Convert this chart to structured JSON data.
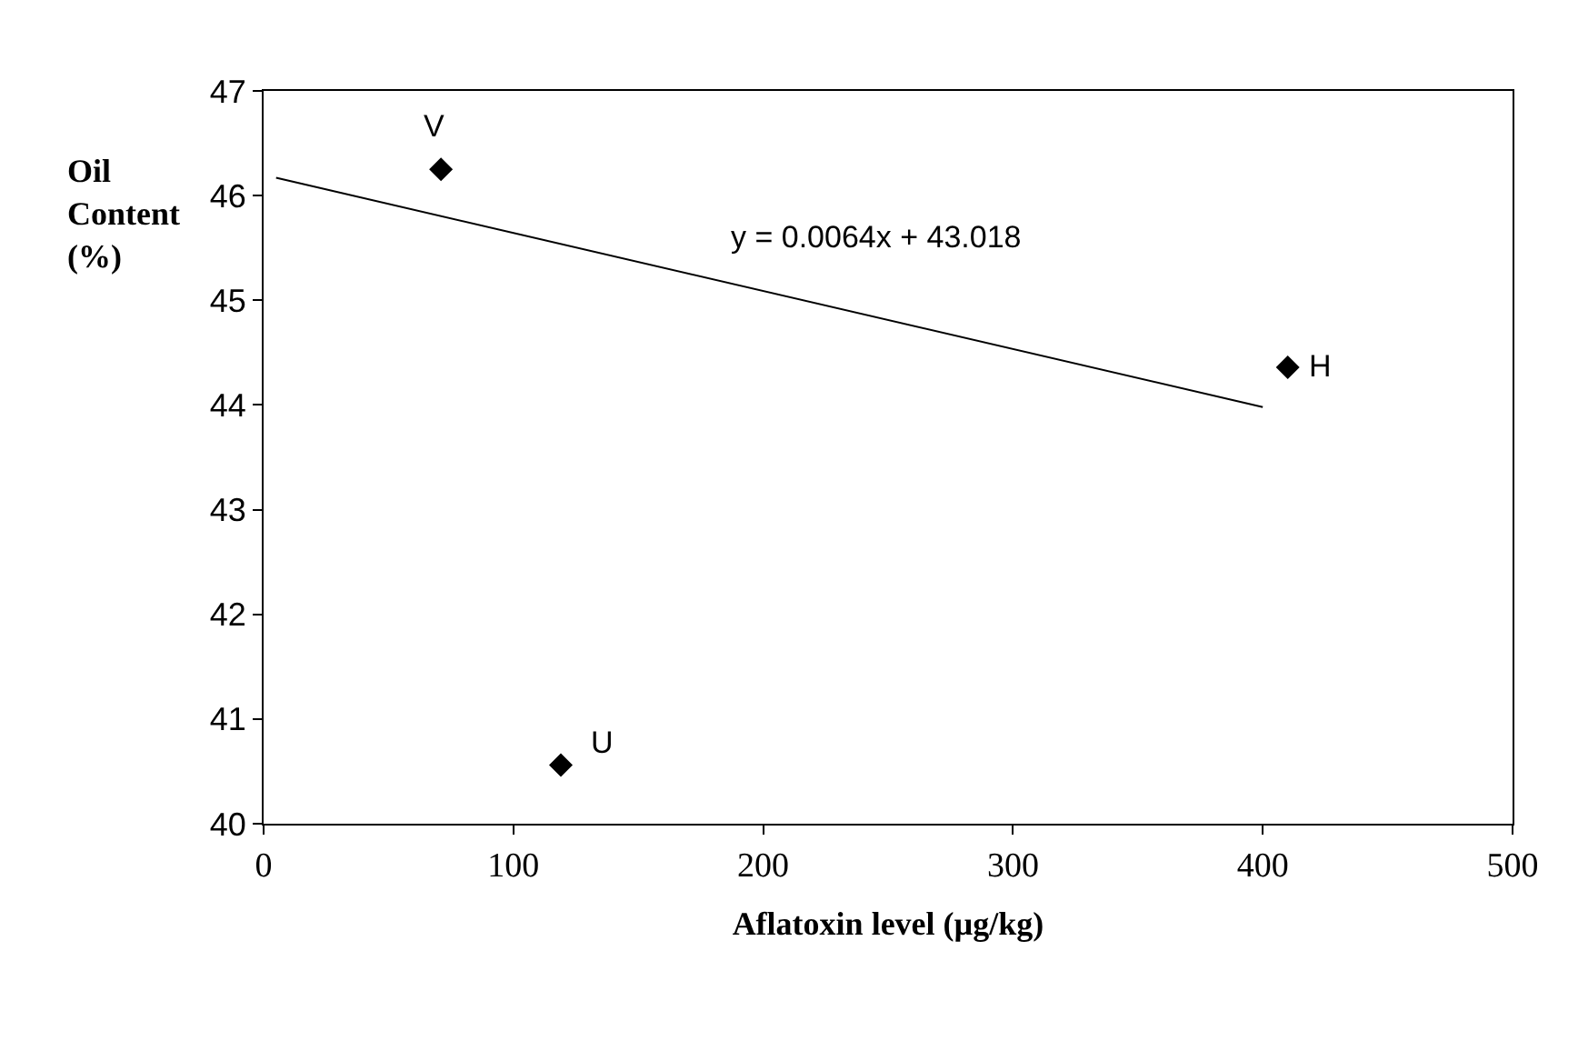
{
  "chart_data": {
    "type": "scatter",
    "xlabel": "Aflatoxin level (µg/kg)",
    "ylabel": "Oil Content (%)",
    "series": [
      {
        "x": [
          71,
          119,
          410
        ],
        "values": [
          46.25,
          40.56,
          44.36
        ],
        "color": "#000000",
        "marker": "diamond"
      },
      {
        "type": "line",
        "x": [
          5,
          400
        ],
        "values": [
          46.17,
          43.98
        ],
        "color": "#000000",
        "marker": "none"
      }
    ],
    "annotations": [
      {
        "text": "V",
        "x": 71,
        "y": 46.25
      },
      {
        "text": "U",
        "x": 119,
        "y": 40.56
      },
      {
        "text": "H",
        "x": 410,
        "y": 44.36
      },
      "y = 0.0064x + 43.018"
    ],
    "xlim": [
      0,
      500
    ],
    "xticks": [
      0,
      100,
      200,
      300,
      400,
      500
    ],
    "ylim": [
      40,
      47
    ],
    "yticks": [
      40,
      41,
      42,
      43,
      44,
      45,
      46,
      47
    ]
  }
}
